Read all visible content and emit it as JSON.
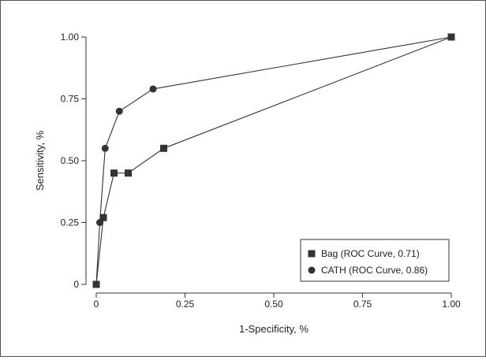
{
  "chart_data": {
    "type": "line",
    "title": "",
    "xlabel": "1-Specificity, %",
    "ylabel": "Sensitivity, %",
    "xlim": [
      0,
      1
    ],
    "ylim": [
      0,
      1
    ],
    "x_ticks": [
      0,
      0.25,
      0.5,
      0.75,
      1.0
    ],
    "x_tick_labels": [
      "0",
      "0.25",
      "0.50",
      "0.75",
      "1.00"
    ],
    "y_ticks": [
      0,
      0.25,
      0.5,
      0.75,
      1.0
    ],
    "y_tick_labels": [
      "0",
      "0.25",
      "0.50",
      "0.75",
      "1.00"
    ],
    "grid": false,
    "legend_position": "bottom-right",
    "series": [
      {
        "name": "Bag (ROC Curve, 0.71)",
        "marker": "square",
        "color": "#333333",
        "points": [
          {
            "x": 0.0,
            "y": 0.0
          },
          {
            "x": 0.02,
            "y": 0.27
          },
          {
            "x": 0.05,
            "y": 0.45
          },
          {
            "x": 0.09,
            "y": 0.45
          },
          {
            "x": 0.19,
            "y": 0.55
          },
          {
            "x": 1.0,
            "y": 1.0
          }
        ]
      },
      {
        "name": "CATH (ROC Curve, 0.86)",
        "marker": "circle",
        "color": "#333333",
        "points": [
          {
            "x": 0.0,
            "y": 0.0
          },
          {
            "x": 0.01,
            "y": 0.25
          },
          {
            "x": 0.025,
            "y": 0.55
          },
          {
            "x": 0.065,
            "y": 0.7
          },
          {
            "x": 0.16,
            "y": 0.79
          },
          {
            "x": 1.0,
            "y": 1.0
          }
        ]
      }
    ]
  }
}
